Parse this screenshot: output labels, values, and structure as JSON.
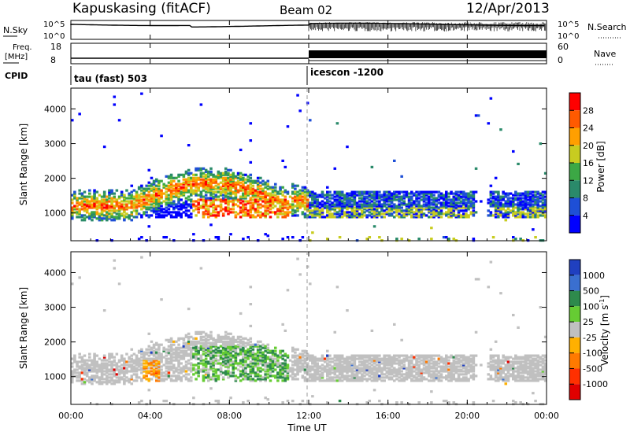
{
  "header": {
    "station": "Kapuskasing (fitACF)",
    "beam": "Beam 02",
    "date": "12/Apr/2013"
  },
  "aux_panels": {
    "nsky_label": "N.Sky",
    "nsearch_label": "N.Search",
    "noise_ticks_left": [
      "10^5",
      "10^0"
    ],
    "noise_ticks_right": [
      "10^5",
      "10^0"
    ],
    "freq_label_line1": "Freq.",
    "freq_label_line2": "[MHz]",
    "freq_ticks": [
      "18",
      "8"
    ],
    "nave_label": "Nave",
    "nave_ticks": [
      "60",
      "0"
    ],
    "cpid_label": "CPID",
    "cpid_segments": [
      {
        "label": "tau (fast) 503",
        "start_hour": 0
      },
      {
        "label": "icescon -1200",
        "start_hour": 12
      }
    ]
  },
  "chart_data": [
    {
      "type": "heatmap",
      "ylabel": "Slant Range [km]",
      "xlim_hours": [
        0,
        24
      ],
      "ylim_km": [
        200,
        4600
      ],
      "y_ticks": [
        1000,
        2000,
        3000,
        4000
      ],
      "colorbar": {
        "label": "Power [dB]",
        "ticks": [
          "4",
          "8",
          "12",
          "16",
          "20",
          "24",
          "28"
        ],
        "colors": [
          "#0000ff",
          "#1e4fd6",
          "#2a8a6a",
          "#3ca845",
          "#c8cc20",
          "#ff9f00",
          "#ff5a00",
          "#ff0000"
        ]
      }
    },
    {
      "type": "heatmap",
      "ylabel": "Slant Range [km]",
      "xlabel": "Time UT",
      "xlim_hours": [
        0,
        24
      ],
      "ylim_km": [
        200,
        4600
      ],
      "y_ticks": [
        1000,
        2000,
        3000,
        4000
      ],
      "x_ticks": [
        "00:00",
        "04:00",
        "08:00",
        "12:00",
        "16:00",
        "20:00",
        "00:00"
      ],
      "colorbar": {
        "label": "Velocity [m s",
        "label_sup": "-1",
        "label_end": "]",
        "ticks": [
          "1000",
          "500",
          "100",
          "25",
          "-25",
          "-100",
          "-500",
          "-1000"
        ],
        "colors": [
          "#2040c0",
          "#3a6fd0",
          "#2e8a4c",
          "#66cc33",
          "#c0c0c0",
          "#ffb000",
          "#ff7a00",
          "#ff3000",
          "#e00000"
        ]
      }
    }
  ]
}
